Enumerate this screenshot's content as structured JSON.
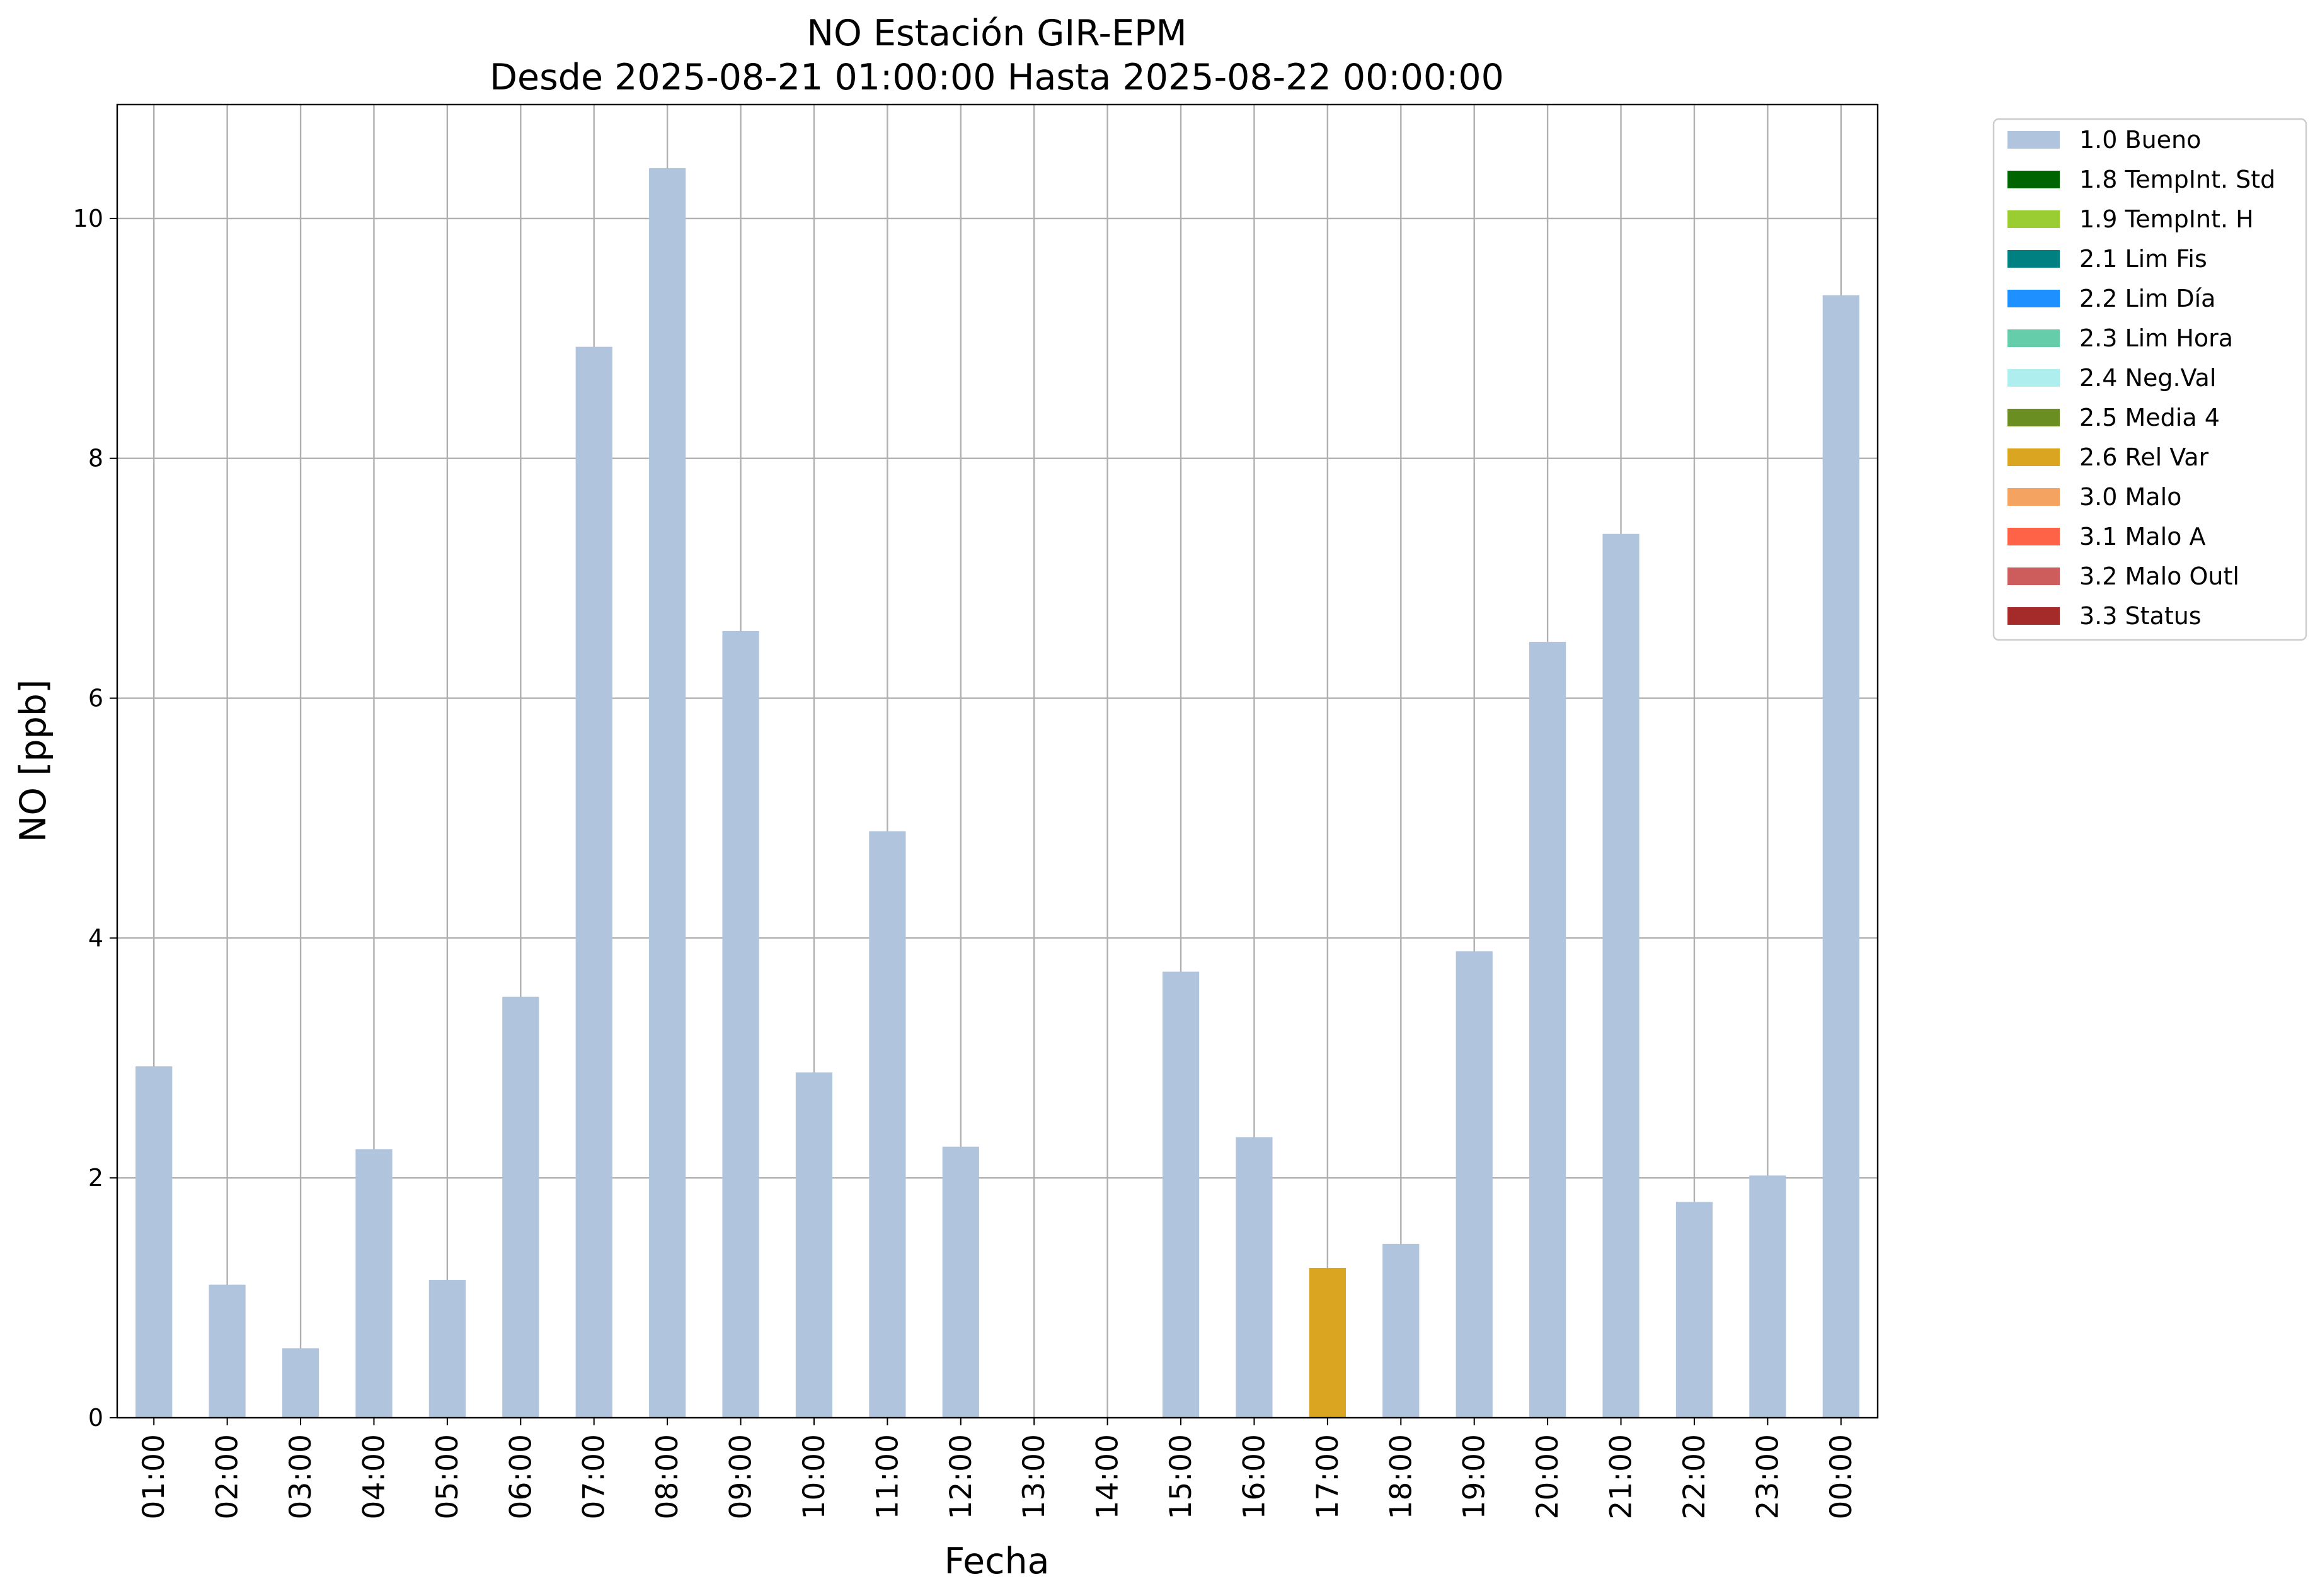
{
  "chart_data": {
    "type": "bar",
    "title": "NO Estación GIR-EPM",
    "subtitle": "Desde 2025-08-21 01:00:00 Hasta 2025-08-22 00:00:00",
    "xlabel": "Fecha",
    "ylabel": "NO [ppb]",
    "ylim": [
      0,
      10.95
    ],
    "yticks": [
      0,
      2,
      4,
      6,
      8,
      10
    ],
    "grid": true,
    "legend_position": "outside-top-right",
    "categories": [
      "01:00",
      "02:00",
      "03:00",
      "04:00",
      "05:00",
      "06:00",
      "07:00",
      "08:00",
      "09:00",
      "10:00",
      "11:00",
      "12:00",
      "13:00",
      "14:00",
      "15:00",
      "16:00",
      "17:00",
      "18:00",
      "19:00",
      "20:00",
      "21:00",
      "22:00",
      "23:00",
      "00:00"
    ],
    "values": [
      2.93,
      1.11,
      0.58,
      2.24,
      1.15,
      3.51,
      8.93,
      10.42,
      6.56,
      2.88,
      4.89,
      2.26,
      null,
      null,
      3.72,
      2.34,
      1.25,
      1.45,
      3.89,
      6.47,
      7.37,
      1.8,
      2.02,
      9.36
    ],
    "flags": [
      "1.0 Bueno",
      "1.0 Bueno",
      "1.0 Bueno",
      "1.0 Bueno",
      "1.0 Bueno",
      "1.0 Bueno",
      "1.0 Bueno",
      "1.0 Bueno",
      "1.0 Bueno",
      "1.0 Bueno",
      "1.0 Bueno",
      "1.0 Bueno",
      null,
      null,
      "1.0 Bueno",
      "1.0 Bueno",
      "2.6 Rel Var",
      "1.0 Bueno",
      "1.0 Bueno",
      "1.0 Bueno",
      "1.0 Bueno",
      "1.0 Bueno",
      "1.0 Bueno",
      "1.0 Bueno"
    ],
    "legend": [
      {
        "label": "1.0 Bueno",
        "color": "#b0c4de"
      },
      {
        "label": "1.8 TempInt. Std",
        "color": "#006400"
      },
      {
        "label": "1.9 TempInt. H",
        "color": "#9acd32"
      },
      {
        "label": "2.1 Lim Fis",
        "color": "#008080"
      },
      {
        "label": "2.2 Lim Día",
        "color": "#1e90ff"
      },
      {
        "label": "2.3 Lim Hora",
        "color": "#66cdaa"
      },
      {
        "label": "2.4 Neg.Val",
        "color": "#afeeee"
      },
      {
        "label": "2.5 Media 4",
        "color": "#6b8e23"
      },
      {
        "label": "2.6 Rel Var",
        "color": "#daa520"
      },
      {
        "label": "3.0 Malo",
        "color": "#f4a460"
      },
      {
        "label": "3.1 Malo A",
        "color": "#ff6347"
      },
      {
        "label": "3.2 Malo Outl",
        "color": "#cd5c5c"
      },
      {
        "label": "3.3 Status",
        "color": "#a52a2a"
      }
    ]
  }
}
